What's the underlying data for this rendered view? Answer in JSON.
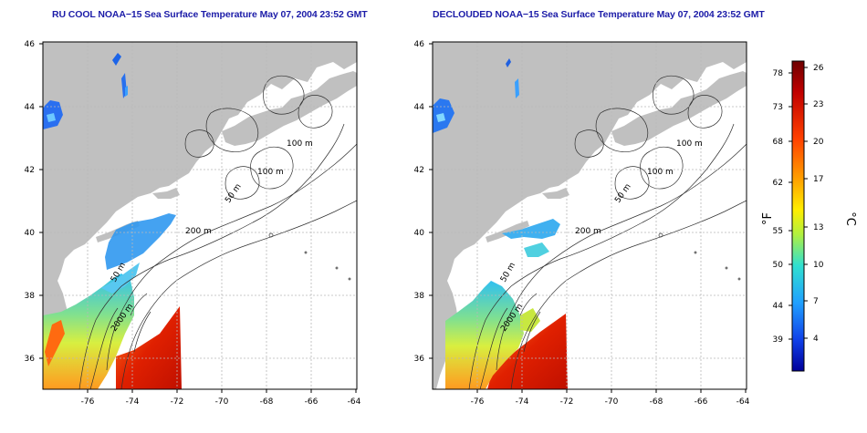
{
  "maps": [
    {
      "title": "RU COOL NOAA−15 Sea Surface Temperature May 07, 2004 23:52 GMT",
      "lat_ticks": [
        "36",
        "38",
        "40",
        "42",
        "44",
        "46"
      ],
      "lon_ticks": [
        "-76",
        "-74",
        "-72",
        "-70",
        "-68",
        "-66",
        "-64"
      ],
      "contour_labels": [
        "100 m",
        "100 m",
        "50 m",
        "200 m",
        "50 m",
        "2000 m"
      ]
    },
    {
      "title": "DECLOUDED NOAA−15 Sea Surface Temperature May 07, 2004 23:52 GMT",
      "lat_ticks": [
        "36",
        "38",
        "40",
        "42",
        "44",
        "46"
      ],
      "lon_ticks": [
        "-76",
        "-74",
        "-72",
        "-70",
        "-68",
        "-66",
        "-64"
      ],
      "contour_labels": [
        "100 m",
        "100 m",
        "50 m",
        "200 m",
        "50 m",
        "2000 m"
      ]
    }
  ],
  "colorbar": {
    "unit_f": "°F",
    "unit_c": "°C",
    "f_ticks": [
      "78",
      "73",
      "68",
      "62",
      "55",
      "50",
      "44",
      "39"
    ],
    "c_ticks": [
      "26",
      "23",
      "20",
      "17",
      "13",
      "10",
      "7",
      "4"
    ],
    "colors": [
      "#7a0000",
      "#c80000",
      "#ff3c00",
      "#ff9a00",
      "#ffee00",
      "#b4f03a",
      "#3ce0c8",
      "#1ea0ff",
      "#1040e8",
      "#0000a0"
    ]
  },
  "colors": {
    "land": "#c0c0c0",
    "ocean": "#ffffff",
    "title": "#1c1ca8"
  }
}
